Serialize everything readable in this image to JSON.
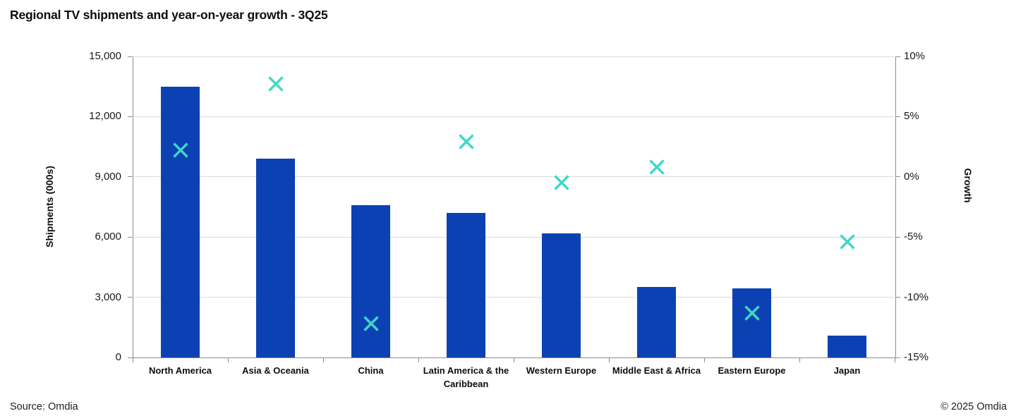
{
  "title": "Regional TV shipments and year-on-year growth - 3Q25",
  "footer": {
    "source": "Source: Omdia",
    "copyright": "© 2025 Omdia"
  },
  "colors": {
    "bar_blue": "#0C41B3",
    "marker_teal": "#3FD8C7",
    "gridline": "#DCDCDC",
    "axis_line": "#8C8C8C"
  },
  "chart_data": {
    "type": "bar",
    "title": "Regional TV shipments and year-on-year growth - 3Q25",
    "categories": [
      "North America",
      "Asia & Oceania",
      "China",
      "Latin America & the Caribbean",
      "Western Europe",
      "Middle East & Africa",
      "Eastern Europe",
      "Japan"
    ],
    "series": [
      {
        "name": "Shipments (000s)",
        "type": "bar",
        "axis": "left",
        "color": "#0C41B3",
        "values": [
          13500,
          9900,
          7600,
          7200,
          6200,
          3500,
          3450,
          1100
        ]
      },
      {
        "name": "Growth",
        "type": "scatter",
        "marker": "x",
        "axis": "right",
        "color": "#3FD8C7",
        "values": [
          2.2,
          7.7,
          -12.2,
          2.9,
          -0.5,
          0.8,
          -11.3,
          -5.4
        ]
      }
    ],
    "left_axis": {
      "label": "Shipments (000s)",
      "min": 0,
      "max": 15000,
      "tick_values": [
        0,
        3000,
        6000,
        9000,
        12000,
        15000
      ],
      "tick_labels": [
        "0",
        "3,000",
        "6,000",
        "9,000",
        "12,000",
        "15,000"
      ]
    },
    "right_axis": {
      "label": "Growth",
      "min": -15,
      "max": 10,
      "tick_values": [
        -15,
        -10,
        -5,
        0,
        5,
        10
      ],
      "tick_labels": [
        "-15%",
        "-10%",
        "-5%",
        "0%",
        "5%",
        "10%"
      ]
    },
    "grid": true,
    "legend": "none"
  }
}
